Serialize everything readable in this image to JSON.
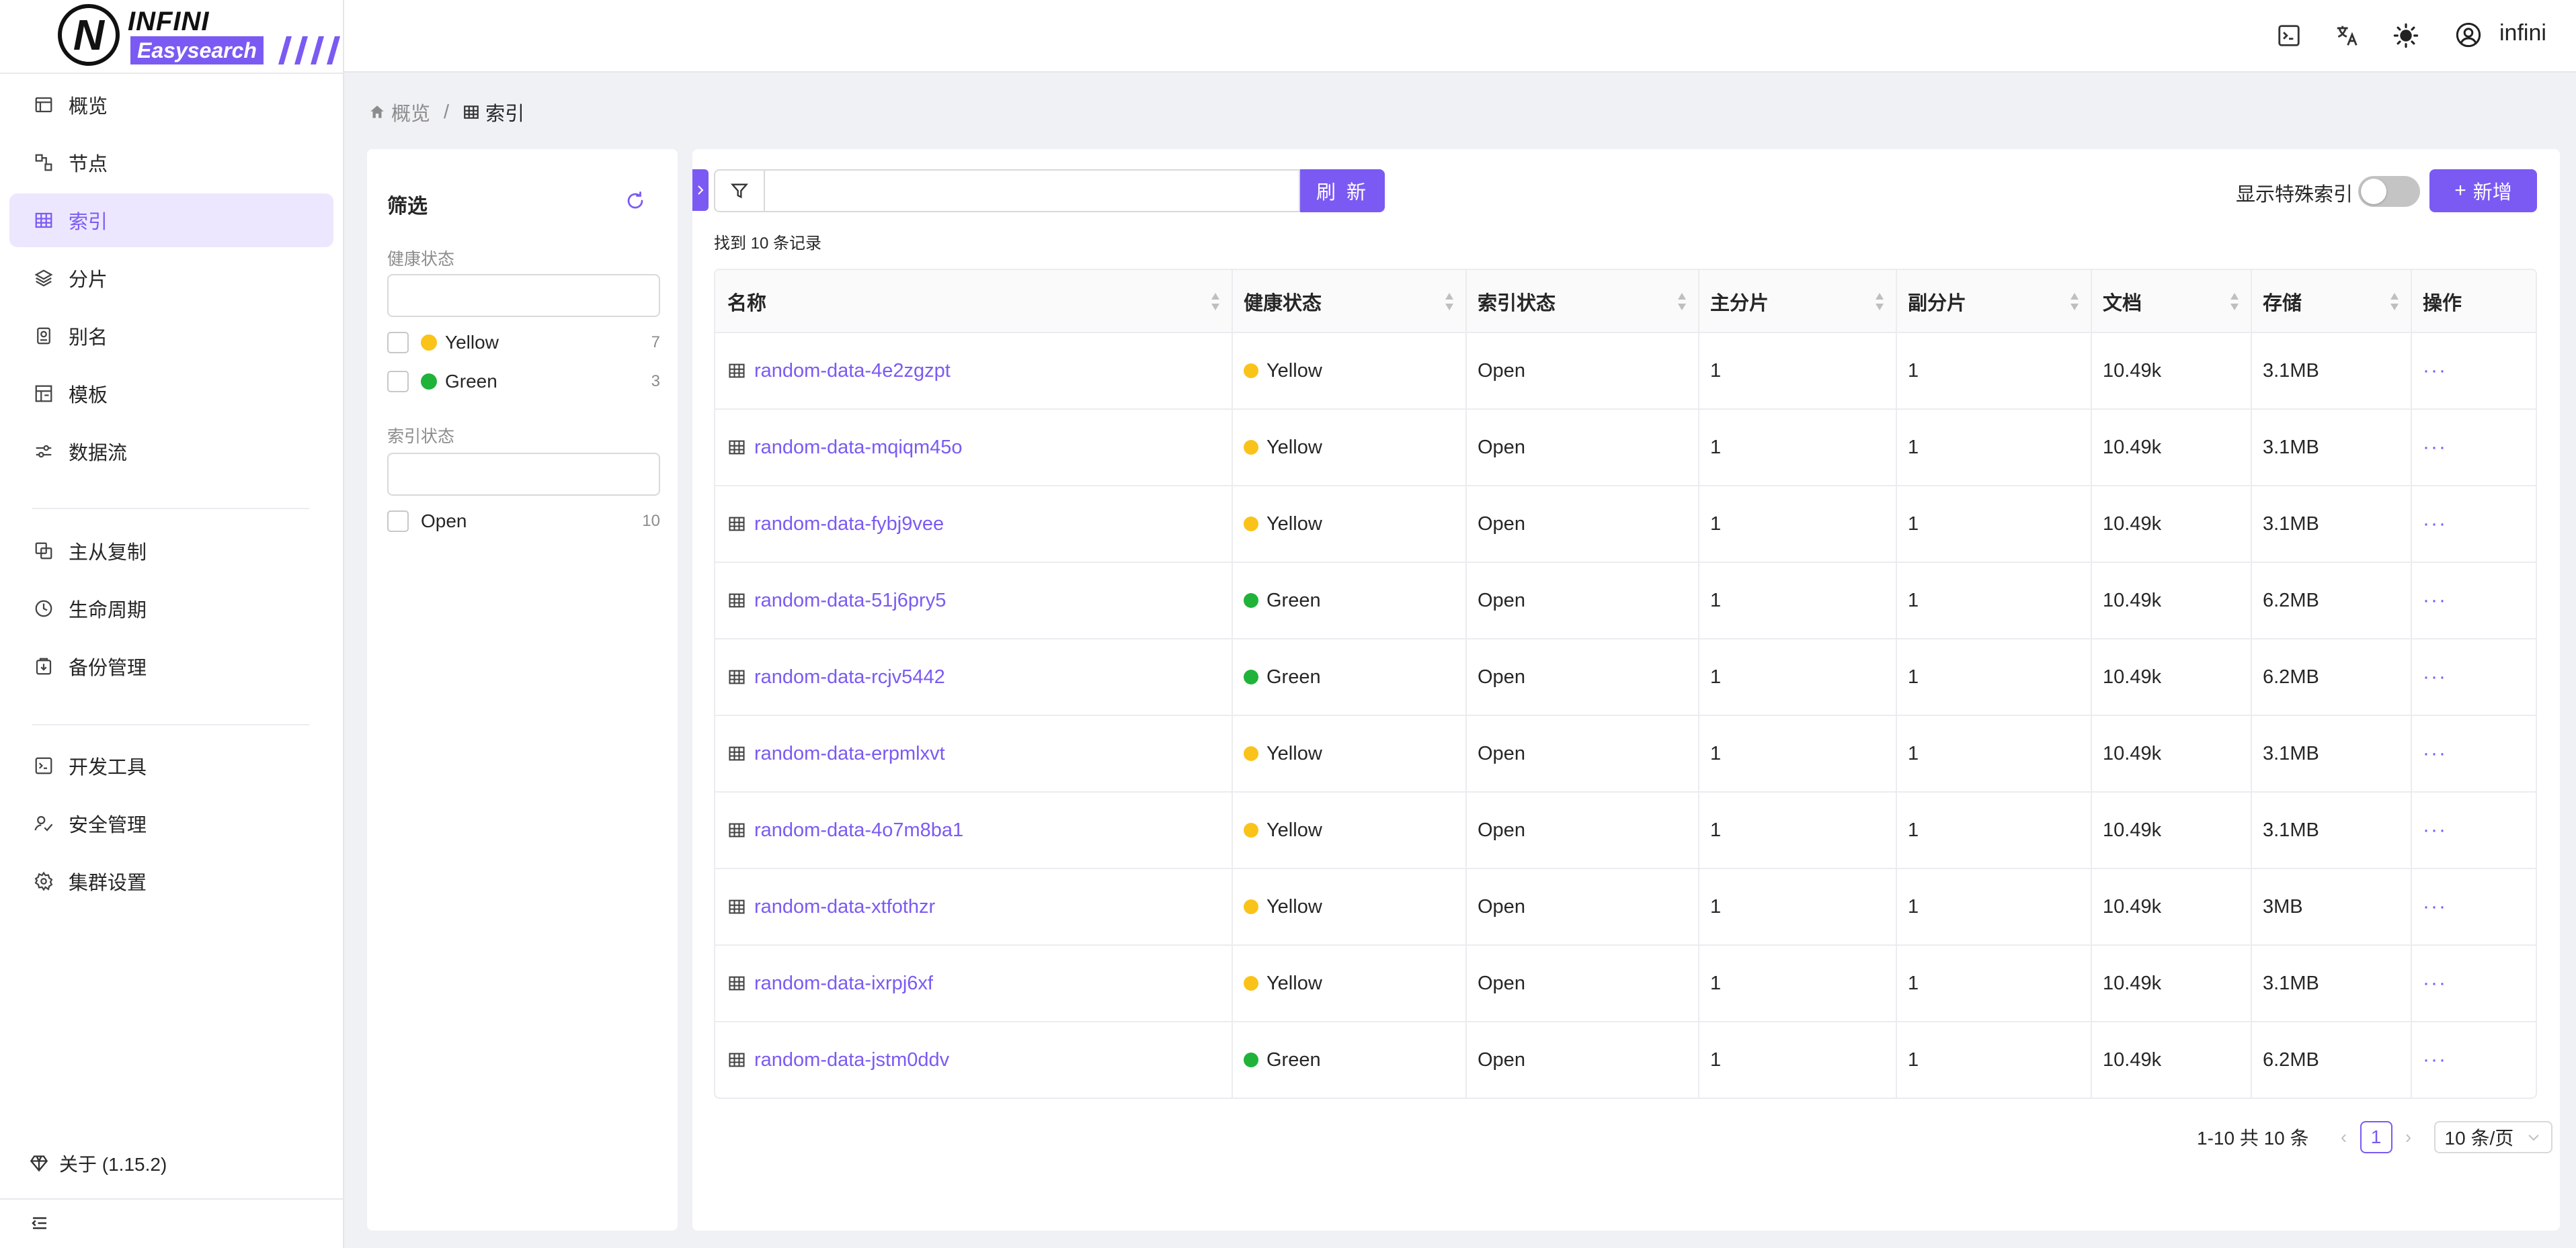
{
  "logo": {
    "word": "INFINI",
    "sub": "Easysearch",
    "mark": "N"
  },
  "sidebar": {
    "items": [
      {
        "label": "概览",
        "icon": "overview-icon"
      },
      {
        "label": "节点",
        "icon": "nodes-icon"
      },
      {
        "label": "索引",
        "icon": "index-icon",
        "active": true
      },
      {
        "label": "分片",
        "icon": "shards-icon"
      },
      {
        "label": "别名",
        "icon": "alias-icon"
      },
      {
        "label": "模板",
        "icon": "template-icon"
      },
      {
        "label": "数据流",
        "icon": "datastream-icon"
      },
      {
        "label": "主从复制",
        "icon": "replication-icon"
      },
      {
        "label": "生命周期",
        "icon": "lifecycle-icon"
      },
      {
        "label": "备份管理",
        "icon": "backup-icon"
      },
      {
        "label": "开发工具",
        "icon": "devtools-icon"
      },
      {
        "label": "安全管理",
        "icon": "security-icon"
      },
      {
        "label": "集群设置",
        "icon": "settings-icon"
      }
    ],
    "about": "关于 (1.15.2)"
  },
  "header": {
    "user": "infini"
  },
  "breadcrumb": {
    "home": "概览",
    "current": "索引"
  },
  "filter": {
    "title": "筛选",
    "health_label": "健康状态",
    "health_options": [
      {
        "label": "Yellow",
        "count": "7",
        "color": "#fac31a"
      },
      {
        "label": "Green",
        "count": "3",
        "color": "#1fb33a"
      }
    ],
    "index_state_label": "索引状态",
    "index_state_options": [
      {
        "label": "Open",
        "count": "10"
      }
    ]
  },
  "toolbar": {
    "search_value": "",
    "refresh_label": "刷 新",
    "special_label": "显示特殊索引",
    "special_enabled": false,
    "add_label": "新增",
    "found_text": "找到 10 条记录"
  },
  "table": {
    "columns": [
      "名称",
      "健康状态",
      "索引状态",
      "主分片",
      "副分片",
      "文档",
      "存储",
      "操作"
    ],
    "rows": [
      {
        "name": "random-data-4e2zgzpt",
        "health": "Yellow",
        "state": "Open",
        "primary": "1",
        "replica": "1",
        "docs": "10.49k",
        "store": "3.1MB"
      },
      {
        "name": "random-data-mqiqm45o",
        "health": "Yellow",
        "state": "Open",
        "primary": "1",
        "replica": "1",
        "docs": "10.49k",
        "store": "3.1MB"
      },
      {
        "name": "random-data-fybj9vee",
        "health": "Yellow",
        "state": "Open",
        "primary": "1",
        "replica": "1",
        "docs": "10.49k",
        "store": "3.1MB"
      },
      {
        "name": "random-data-51j6pry5",
        "health": "Green",
        "state": "Open",
        "primary": "1",
        "replica": "1",
        "docs": "10.49k",
        "store": "6.2MB"
      },
      {
        "name": "random-data-rcjv5442",
        "health": "Green",
        "state": "Open",
        "primary": "1",
        "replica": "1",
        "docs": "10.49k",
        "store": "6.2MB"
      },
      {
        "name": "random-data-erpmlxvt",
        "health": "Yellow",
        "state": "Open",
        "primary": "1",
        "replica": "1",
        "docs": "10.49k",
        "store": "3.1MB"
      },
      {
        "name": "random-data-4o7m8ba1",
        "health": "Yellow",
        "state": "Open",
        "primary": "1",
        "replica": "1",
        "docs": "10.49k",
        "store": "3.1MB"
      },
      {
        "name": "random-data-xtfothzr",
        "health": "Yellow",
        "state": "Open",
        "primary": "1",
        "replica": "1",
        "docs": "10.49k",
        "store": "3MB"
      },
      {
        "name": "random-data-ixrpj6xf",
        "health": "Yellow",
        "state": "Open",
        "primary": "1",
        "replica": "1",
        "docs": "10.49k",
        "store": "3.1MB"
      },
      {
        "name": "random-data-jstm0ddv",
        "health": "Green",
        "state": "Open",
        "primary": "1",
        "replica": "1",
        "docs": "10.49k",
        "store": "6.2MB"
      }
    ],
    "action_label": "···"
  },
  "pagination": {
    "total_text": "1-10 共 10 条",
    "current": "1",
    "page_size": "10 条/页"
  },
  "colors": {
    "accent": "#7b5af3",
    "yellow": "#fac31a",
    "green": "#1fb33a"
  }
}
